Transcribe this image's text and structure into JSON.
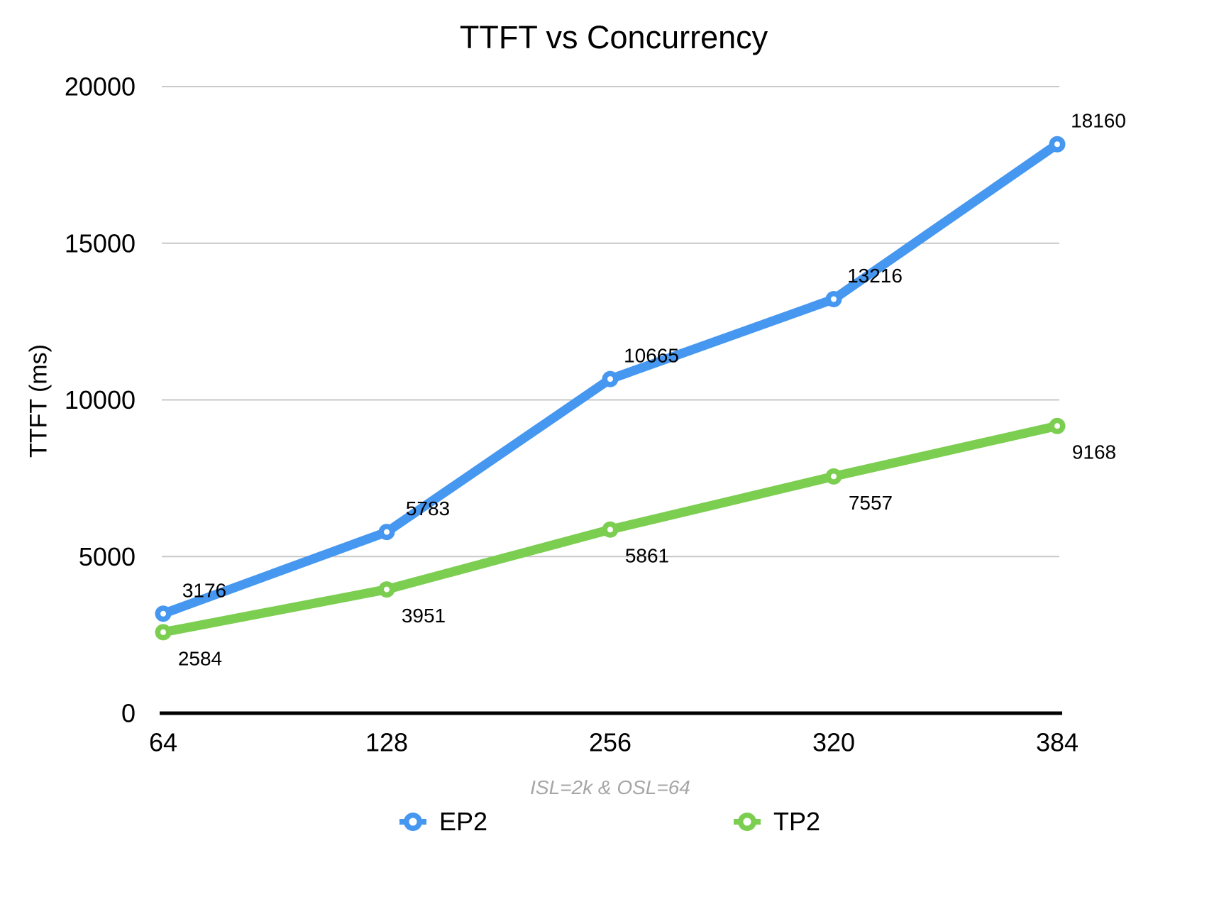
{
  "chart_data": {
    "type": "line",
    "title": "TTFT vs Concurrency",
    "ylabel": "TTFT (ms)",
    "note": "ISL=2k & OSL=64",
    "categories": [
      "64",
      "128",
      "256",
      "320",
      "384"
    ],
    "series": [
      {
        "name": "EP2",
        "color": "#4697F0",
        "values": [
          3176,
          5783,
          10665,
          13216,
          18160
        ]
      },
      {
        "name": "TP2",
        "color": "#7CCE50",
        "values": [
          2584,
          3951,
          5861,
          7557,
          9168
        ]
      }
    ],
    "ylim": [
      0,
      20000
    ],
    "yticks": [
      0,
      5000,
      10000,
      15000,
      20000
    ],
    "grid": "horizontal-only",
    "legend_position": "bottom",
    "colors": {
      "grid": "#C8C8C8",
      "axis": "#000000",
      "note_text": "#A6A6A6",
      "label_text": "#000000",
      "tick_text": "#000000"
    }
  }
}
